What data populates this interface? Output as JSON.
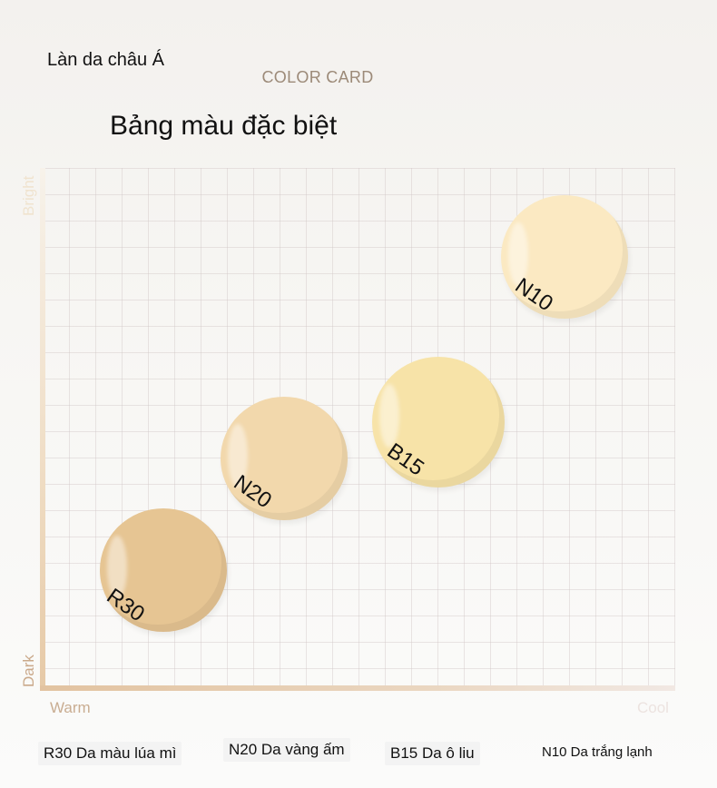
{
  "header": {
    "subtitle": "Làn da châu Á",
    "card_title": "COLOR CARD",
    "title": "Bảng màu đặc biệt"
  },
  "axes": {
    "y_top": "Bright",
    "y_bottom": "Dark",
    "x_left": "Warm",
    "x_right": "Cool"
  },
  "swatches": [
    {
      "code": "R30",
      "color": "#e6c593"
    },
    {
      "code": "N20",
      "color": "#f2d8ac"
    },
    {
      "code": "B15",
      "color": "#f7e3a8"
    },
    {
      "code": "N10",
      "color": "#fbe9c2"
    }
  ],
  "legend": [
    {
      "text": "R30 Da màu lúa mì"
    },
    {
      "text": "N20 Da vàng ấm"
    },
    {
      "text": "B15 Da ô liu"
    },
    {
      "text": "N10 Da trắng lạnh"
    }
  ]
}
